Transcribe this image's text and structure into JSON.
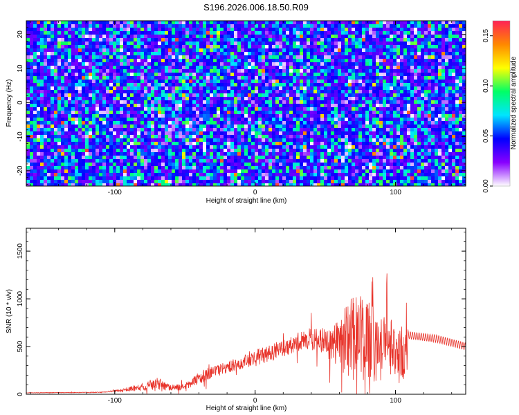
{
  "title": "S196.2026.006.18.50.R09",
  "chart_data": [
    {
      "type": "heatmap",
      "xlabel": "Height of straight line (km)",
      "ylabel": "Frequency (Hz)",
      "xlim": [
        -163,
        150
      ],
      "ylim": [
        -24.5,
        24
      ],
      "xticks": [
        -100,
        0,
        100
      ],
      "yticks": [
        -20,
        -10,
        0,
        10,
        20
      ],
      "colorbar": {
        "label": "Normalized spectral amplitude",
        "range": [
          0,
          0.165
        ],
        "ticks": [
          "0.00",
          "0.05",
          "0.10",
          "0.15"
        ],
        "tick_values": [
          0,
          0.05,
          0.1,
          0.15
        ],
        "colormap": [
          "#ffffff",
          "#8800ff",
          "#0000ff",
          "#00e5ff",
          "#00ff66",
          "#ffff00",
          "#ff8800",
          "#ff2255"
        ]
      }
    },
    {
      "type": "line",
      "xlabel": "Height of straight line (km)",
      "ylabel": "SNR (10 * v/v)",
      "xlim": [
        -163,
        150
      ],
      "ylim": [
        0,
        1740
      ],
      "xticks": [
        -100,
        0,
        100
      ],
      "yticks": [
        0,
        500,
        1000,
        1500
      ],
      "color": "#e8332a",
      "envelope": [
        {
          "x": -163,
          "baseline": 15,
          "amplitude": 5
        },
        {
          "x": -110,
          "baseline": 20,
          "amplitude": 8
        },
        {
          "x": -95,
          "baseline": 40,
          "amplitude": 30
        },
        {
          "x": -80,
          "baseline": 80,
          "amplitude": 100
        },
        {
          "x": -70,
          "baseline": 110,
          "amplitude": 140
        },
        {
          "x": -60,
          "baseline": 70,
          "amplitude": 80
        },
        {
          "x": -50,
          "baseline": 80,
          "amplitude": 70
        },
        {
          "x": -40,
          "baseline": 170,
          "amplitude": 140
        },
        {
          "x": -30,
          "baseline": 240,
          "amplitude": 150
        },
        {
          "x": -20,
          "baseline": 280,
          "amplitude": 140
        },
        {
          "x": -10,
          "baseline": 330,
          "amplitude": 150
        },
        {
          "x": 0,
          "baseline": 380,
          "amplitude": 200
        },
        {
          "x": 10,
          "baseline": 430,
          "amplitude": 190
        },
        {
          "x": 20,
          "baseline": 480,
          "amplitude": 200
        },
        {
          "x": 30,
          "baseline": 540,
          "amplitude": 200
        },
        {
          "x": 40,
          "baseline": 580,
          "amplitude": 280
        },
        {
          "x": 50,
          "baseline": 560,
          "amplitude": 360
        },
        {
          "x": 60,
          "baseline": 520,
          "amplitude": 560
        },
        {
          "x": 65,
          "baseline": 560,
          "amplitude": 900
        },
        {
          "x": 70,
          "baseline": 600,
          "amplitude": 1100
        },
        {
          "x": 80,
          "baseline": 560,
          "amplitude": 1000
        },
        {
          "x": 90,
          "baseline": 500,
          "amplitude": 800
        },
        {
          "x": 100,
          "baseline": 450,
          "amplitude": 700
        },
        {
          "x": 107,
          "baseline": 420,
          "amplitude": 640
        },
        {
          "x": 109,
          "baseline": 620,
          "amplitude": 40
        },
        {
          "x": 130,
          "baseline": 580,
          "amplitude": 40
        },
        {
          "x": 150,
          "baseline": 500,
          "amplitude": 40
        }
      ]
    }
  ]
}
